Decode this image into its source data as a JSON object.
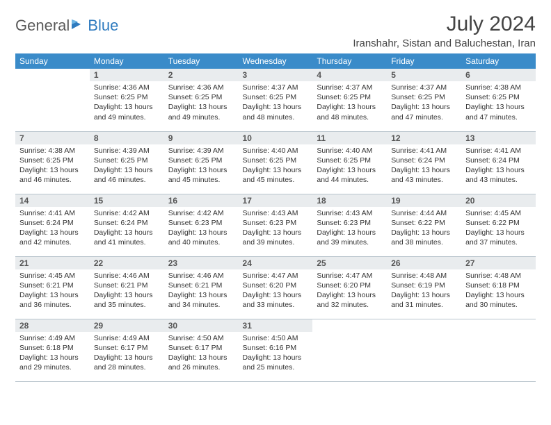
{
  "brand": {
    "part1": "General",
    "part2": "Blue"
  },
  "title": "July 2024",
  "location": "Iranshahr, Sistan and Baluchestan, Iran",
  "colors": {
    "header_bg": "#3a8bc9",
    "header_text": "#ffffff",
    "daynum_bg": "#e9ecee",
    "border": "#b8c4cc",
    "brand_blue": "#2f7bbf"
  },
  "weekdays": [
    "Sunday",
    "Monday",
    "Tuesday",
    "Wednesday",
    "Thursday",
    "Friday",
    "Saturday"
  ],
  "start_offset": 1,
  "days": [
    {
      "n": 1,
      "sr": "4:36 AM",
      "ss": "6:25 PM",
      "dl": "13 hours and 49 minutes."
    },
    {
      "n": 2,
      "sr": "4:36 AM",
      "ss": "6:25 PM",
      "dl": "13 hours and 49 minutes."
    },
    {
      "n": 3,
      "sr": "4:37 AM",
      "ss": "6:25 PM",
      "dl": "13 hours and 48 minutes."
    },
    {
      "n": 4,
      "sr": "4:37 AM",
      "ss": "6:25 PM",
      "dl": "13 hours and 48 minutes."
    },
    {
      "n": 5,
      "sr": "4:37 AM",
      "ss": "6:25 PM",
      "dl": "13 hours and 47 minutes."
    },
    {
      "n": 6,
      "sr": "4:38 AM",
      "ss": "6:25 PM",
      "dl": "13 hours and 47 minutes."
    },
    {
      "n": 7,
      "sr": "4:38 AM",
      "ss": "6:25 PM",
      "dl": "13 hours and 46 minutes."
    },
    {
      "n": 8,
      "sr": "4:39 AM",
      "ss": "6:25 PM",
      "dl": "13 hours and 46 minutes."
    },
    {
      "n": 9,
      "sr": "4:39 AM",
      "ss": "6:25 PM",
      "dl": "13 hours and 45 minutes."
    },
    {
      "n": 10,
      "sr": "4:40 AM",
      "ss": "6:25 PM",
      "dl": "13 hours and 45 minutes."
    },
    {
      "n": 11,
      "sr": "4:40 AM",
      "ss": "6:25 PM",
      "dl": "13 hours and 44 minutes."
    },
    {
      "n": 12,
      "sr": "4:41 AM",
      "ss": "6:24 PM",
      "dl": "13 hours and 43 minutes."
    },
    {
      "n": 13,
      "sr": "4:41 AM",
      "ss": "6:24 PM",
      "dl": "13 hours and 43 minutes."
    },
    {
      "n": 14,
      "sr": "4:41 AM",
      "ss": "6:24 PM",
      "dl": "13 hours and 42 minutes."
    },
    {
      "n": 15,
      "sr": "4:42 AM",
      "ss": "6:24 PM",
      "dl": "13 hours and 41 minutes."
    },
    {
      "n": 16,
      "sr": "4:42 AM",
      "ss": "6:23 PM",
      "dl": "13 hours and 40 minutes."
    },
    {
      "n": 17,
      "sr": "4:43 AM",
      "ss": "6:23 PM",
      "dl": "13 hours and 39 minutes."
    },
    {
      "n": 18,
      "sr": "4:43 AM",
      "ss": "6:23 PM",
      "dl": "13 hours and 39 minutes."
    },
    {
      "n": 19,
      "sr": "4:44 AM",
      "ss": "6:22 PM",
      "dl": "13 hours and 38 minutes."
    },
    {
      "n": 20,
      "sr": "4:45 AM",
      "ss": "6:22 PM",
      "dl": "13 hours and 37 minutes."
    },
    {
      "n": 21,
      "sr": "4:45 AM",
      "ss": "6:21 PM",
      "dl": "13 hours and 36 minutes."
    },
    {
      "n": 22,
      "sr": "4:46 AM",
      "ss": "6:21 PM",
      "dl": "13 hours and 35 minutes."
    },
    {
      "n": 23,
      "sr": "4:46 AM",
      "ss": "6:21 PM",
      "dl": "13 hours and 34 minutes."
    },
    {
      "n": 24,
      "sr": "4:47 AM",
      "ss": "6:20 PM",
      "dl": "13 hours and 33 minutes."
    },
    {
      "n": 25,
      "sr": "4:47 AM",
      "ss": "6:20 PM",
      "dl": "13 hours and 32 minutes."
    },
    {
      "n": 26,
      "sr": "4:48 AM",
      "ss": "6:19 PM",
      "dl": "13 hours and 31 minutes."
    },
    {
      "n": 27,
      "sr": "4:48 AM",
      "ss": "6:18 PM",
      "dl": "13 hours and 30 minutes."
    },
    {
      "n": 28,
      "sr": "4:49 AM",
      "ss": "6:18 PM",
      "dl": "13 hours and 29 minutes."
    },
    {
      "n": 29,
      "sr": "4:49 AM",
      "ss": "6:17 PM",
      "dl": "13 hours and 28 minutes."
    },
    {
      "n": 30,
      "sr": "4:50 AM",
      "ss": "6:17 PM",
      "dl": "13 hours and 26 minutes."
    },
    {
      "n": 31,
      "sr": "4:50 AM",
      "ss": "6:16 PM",
      "dl": "13 hours and 25 minutes."
    }
  ],
  "labels": {
    "sunrise": "Sunrise:",
    "sunset": "Sunset:",
    "daylight": "Daylight:"
  }
}
